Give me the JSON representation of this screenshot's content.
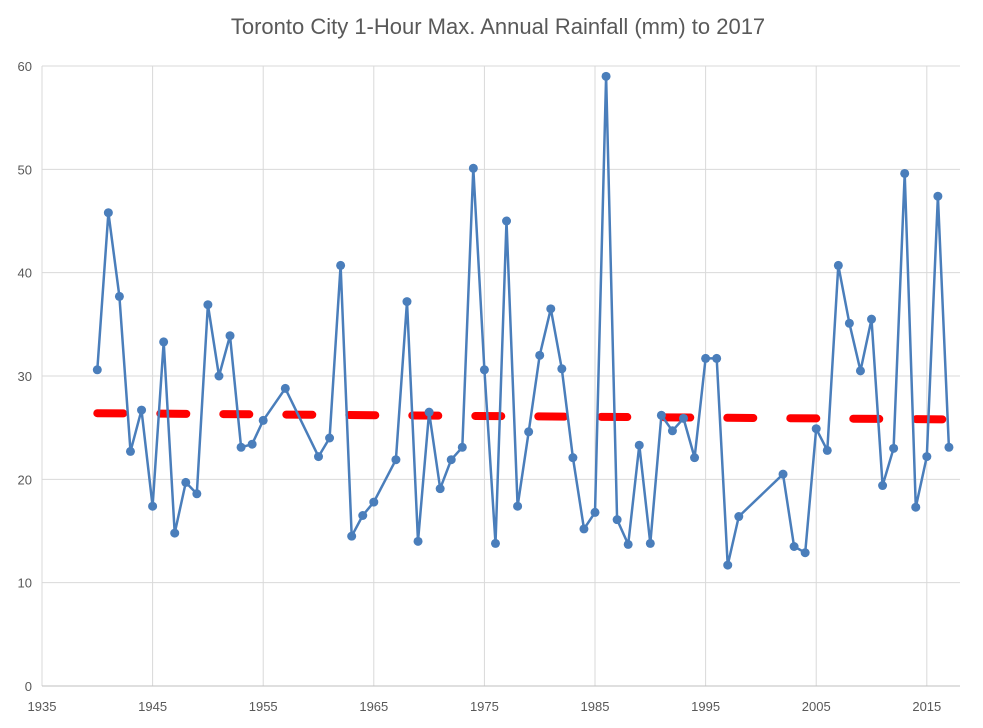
{
  "chart_data": {
    "type": "line",
    "title": "Toronto City 1-Hour Max. Annual Rainfall (mm) to 2017",
    "xlabel": "",
    "ylabel": "",
    "xlim": [
      1935,
      2018
    ],
    "ylim": [
      0,
      60
    ],
    "x_ticks": [
      "1935",
      "1945",
      "1955",
      "1965",
      "1975",
      "1985",
      "1995",
      "2005",
      "2015"
    ],
    "y_ticks": [
      "0",
      "10",
      "20",
      "30",
      "40",
      "50",
      "60"
    ],
    "grid": true,
    "legend": "none",
    "series": [
      {
        "color": "#4a7ebb",
        "marker": "circle",
        "points": [
          [
            1940,
            30.6
          ],
          [
            1941,
            45.8
          ],
          [
            1942,
            37.7
          ],
          [
            1943,
            22.7
          ],
          [
            1944,
            26.7
          ],
          [
            1945,
            17.4
          ],
          [
            1946,
            33.3
          ],
          [
            1947,
            14.8
          ],
          [
            1948,
            19.7
          ],
          [
            1949,
            18.6
          ],
          [
            1950,
            36.9
          ],
          [
            1951,
            30.0
          ],
          [
            1952,
            33.9
          ],
          [
            1953,
            23.1
          ],
          [
            1954,
            23.4
          ],
          [
            1955,
            25.7
          ],
          [
            1957,
            28.8
          ],
          [
            1960,
            22.2
          ],
          [
            1961,
            24.0
          ],
          [
            1962,
            40.7
          ],
          [
            1963,
            14.5
          ],
          [
            1964,
            16.5
          ],
          [
            1965,
            17.8
          ],
          [
            1967,
            21.9
          ],
          [
            1968,
            37.2
          ],
          [
            1969,
            14.0
          ],
          [
            1970,
            26.5
          ],
          [
            1971,
            19.1
          ],
          [
            1972,
            21.9
          ],
          [
            1973,
            23.1
          ],
          [
            1974,
            50.1
          ],
          [
            1975,
            30.6
          ],
          [
            1976,
            13.8
          ],
          [
            1977,
            45.0
          ],
          [
            1978,
            17.4
          ],
          [
            1979,
            24.6
          ],
          [
            1980,
            32.0
          ],
          [
            1981,
            36.5
          ],
          [
            1982,
            30.7
          ],
          [
            1983,
            22.1
          ],
          [
            1984,
            15.2
          ],
          [
            1985,
            16.8
          ],
          [
            1986,
            59.0
          ],
          [
            1987,
            16.1
          ],
          [
            1988,
            13.7
          ],
          [
            1989,
            23.3
          ],
          [
            1990,
            13.8
          ],
          [
            1991,
            26.2
          ],
          [
            1992,
            24.7
          ],
          [
            1993,
            25.9
          ],
          [
            1994,
            22.1
          ],
          [
            1995,
            31.7
          ],
          [
            1996,
            31.7
          ],
          [
            1997,
            11.7
          ],
          [
            1998,
            16.4
          ],
          [
            2002,
            20.5
          ],
          [
            2003,
            13.5
          ],
          [
            2004,
            12.9
          ],
          [
            2005,
            24.9
          ],
          [
            2006,
            22.8
          ],
          [
            2007,
            40.7
          ],
          [
            2008,
            35.1
          ],
          [
            2009,
            30.5
          ],
          [
            2010,
            35.5
          ],
          [
            2011,
            19.4
          ],
          [
            2012,
            23.0
          ],
          [
            2013,
            49.6
          ],
          [
            2014,
            17.3
          ],
          [
            2015,
            22.2
          ],
          [
            2016,
            47.4
          ],
          [
            2017,
            23.1
          ]
        ]
      }
    ],
    "trendline": {
      "type": "linear",
      "style": "dashed",
      "color": "#ff0000",
      "points": [
        [
          1940,
          26.4
        ],
        [
          2017,
          25.8
        ]
      ]
    }
  }
}
